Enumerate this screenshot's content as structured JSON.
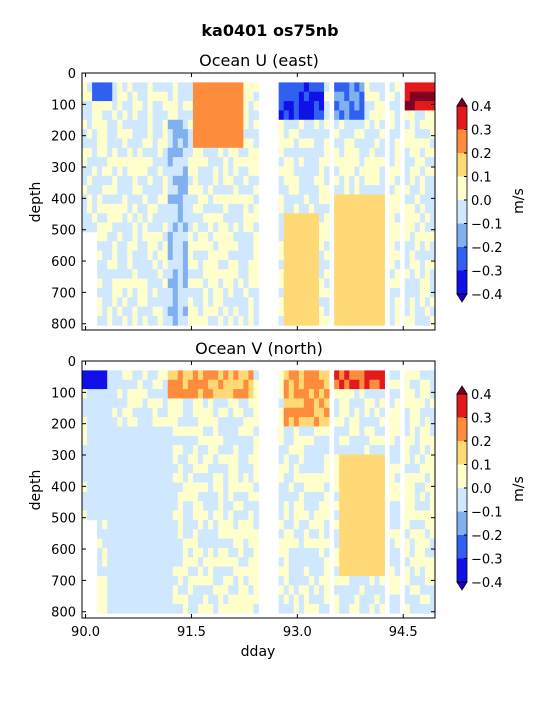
{
  "figure_title": "ka0401 os75nb",
  "chart_data": [
    {
      "type": "heatmap",
      "title": "Ocean U (east)",
      "xlabel": "",
      "ylabel": "depth",
      "xlim": [
        89.95,
        94.95
      ],
      "ylim": [
        820,
        0
      ],
      "y_inverted": true,
      "xticks": [
        90.0,
        91.5,
        93.0,
        94.5
      ],
      "xtick_labels": [
        "",
        "",
        "",
        ""
      ],
      "yticks": [
        0,
        100,
        200,
        300,
        400,
        500,
        600,
        700,
        800
      ],
      "ytick_labels": [
        "0",
        "100",
        "200",
        "300",
        "400",
        "500",
        "600",
        "700",
        "800"
      ],
      "colorbar": {
        "label": "m/s",
        "levels": [
          -0.4,
          -0.3,
          -0.2,
          -0.1,
          0.0,
          0.1,
          0.2,
          0.3,
          0.4
        ],
        "tick_labels": [
          "−0.4",
          "−0.3",
          "−0.2",
          "−0.1",
          "0.0",
          "0.1",
          "0.2",
          "0.3",
          "0.4"
        ],
        "extend": "both"
      },
      "data_gaps_dday": [
        [
          90.37,
          90.4
        ],
        [
          92.48,
          92.75
        ],
        [
          93.48,
          93.52
        ],
        [
          94.22,
          94.28
        ],
        [
          94.42,
          94.5
        ]
      ],
      "features": [
        {
          "x": [
            90.1,
            90.35
          ],
          "y": [
            30,
            100
          ],
          "value": -0.25
        },
        {
          "x": [
            91.55,
            92.2
          ],
          "y": [
            30,
            250
          ],
          "value": 0.25
        },
        {
          "x": [
            92.75,
            93.35
          ],
          "y": [
            30,
            140
          ],
          "value": -0.3
        },
        {
          "x": [
            93.55,
            93.95
          ],
          "y": [
            30,
            140
          ],
          "value": -0.2
        },
        {
          "x": [
            94.5,
            94.95
          ],
          "y": [
            30,
            130
          ],
          "value": 0.4
        },
        {
          "x": [
            92.8,
            93.3
          ],
          "y": [
            450,
            800
          ],
          "value": 0.15
        },
        {
          "x": [
            93.55,
            94.2
          ],
          "y": [
            400,
            800
          ],
          "value": 0.15
        },
        {
          "x": [
            91.2,
            91.45
          ],
          "y": [
            150,
            800
          ],
          "value": -0.1
        }
      ]
    },
    {
      "type": "heatmap",
      "title": "Ocean V (north)",
      "xlabel": "dday",
      "ylabel": "depth",
      "xlim": [
        89.95,
        94.95
      ],
      "ylim": [
        820,
        0
      ],
      "y_inverted": true,
      "xticks": [
        90.0,
        91.5,
        93.0,
        94.5
      ],
      "xtick_labels": [
        "90.0",
        "91.5",
        "93.0",
        "94.5"
      ],
      "yticks": [
        0,
        100,
        200,
        300,
        400,
        500,
        600,
        700,
        800
      ],
      "ytick_labels": [
        "0",
        "100",
        "200",
        "300",
        "400",
        "500",
        "600",
        "700",
        "800"
      ],
      "colorbar": {
        "label": "m/s",
        "levels": [
          -0.4,
          -0.3,
          -0.2,
          -0.1,
          0.0,
          0.1,
          0.2,
          0.3,
          0.4
        ],
        "tick_labels": [
          "−0.4",
          "−0.3",
          "−0.2",
          "−0.1",
          "0.0",
          "0.1",
          "0.2",
          "0.3",
          "0.4"
        ],
        "extend": "both"
      },
      "data_gaps_dday": [
        [
          90.37,
          90.4
        ],
        [
          92.48,
          92.75
        ],
        [
          93.48,
          93.52
        ],
        [
          94.22,
          94.28
        ],
        [
          94.42,
          94.5
        ]
      ],
      "features": [
        {
          "x": [
            89.95,
            90.3
          ],
          "y": [
            30,
            100
          ],
          "value": -0.35
        },
        {
          "x": [
            91.2,
            92.4
          ],
          "y": [
            30,
            120
          ],
          "value": 0.2
        },
        {
          "x": [
            92.8,
            93.45
          ],
          "y": [
            30,
            200
          ],
          "value": 0.2
        },
        {
          "x": [
            93.55,
            94.2
          ],
          "y": [
            30,
            100
          ],
          "value": 0.3
        },
        {
          "x": [
            93.6,
            94.2
          ],
          "y": [
            300,
            700
          ],
          "value": 0.15
        },
        {
          "x": [
            90.0,
            90.3
          ],
          "y": [
            100,
            500
          ],
          "value": -0.05
        },
        {
          "x": [
            90.3,
            91.2
          ],
          "y": [
            200,
            800
          ],
          "value": -0.05
        }
      ]
    }
  ]
}
